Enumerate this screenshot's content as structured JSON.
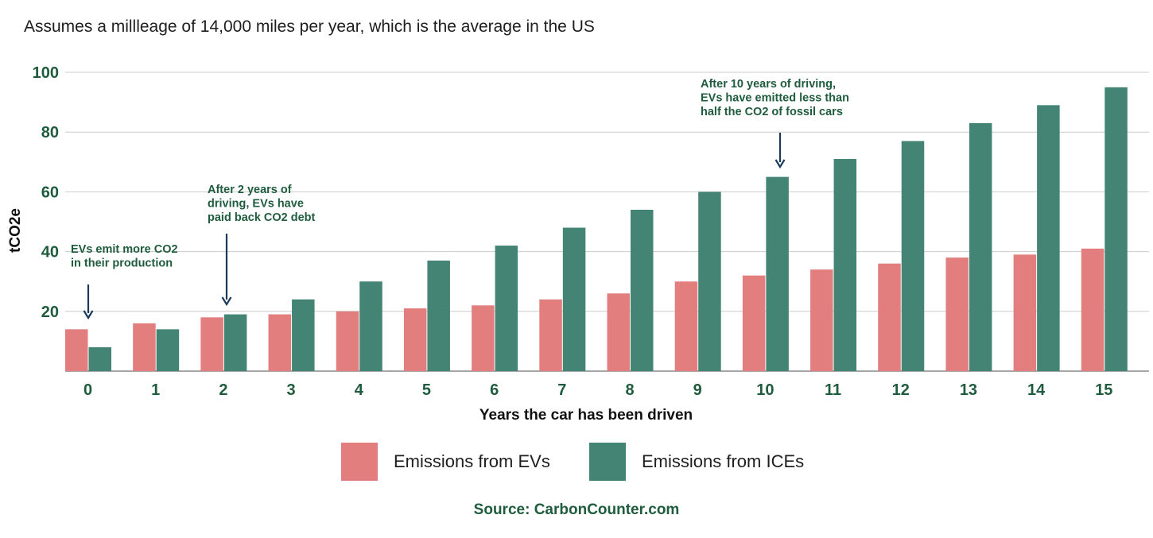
{
  "subtitle": "Assumes a millleage of 14,000 miles per year, which is the average in the US",
  "chart_data": {
    "type": "bar",
    "categories": [
      "0",
      "1",
      "2",
      "3",
      "4",
      "5",
      "6",
      "7",
      "8",
      "9",
      "10",
      "11",
      "12",
      "13",
      "14",
      "15"
    ],
    "series": [
      {
        "name": "Emissions from EVs",
        "color": "#e27e7e",
        "values": [
          14,
          16,
          18,
          19,
          20,
          21,
          22,
          24,
          26,
          30,
          32,
          34,
          36,
          38,
          39,
          41
        ]
      },
      {
        "name": "Emissions from ICEs",
        "color": "#438474",
        "values": [
          8,
          14,
          19,
          24,
          30,
          37,
          42,
          48,
          54,
          60,
          65,
          71,
          77,
          83,
          89,
          95
        ]
      }
    ],
    "title": "",
    "xlabel": "Years the car has been driven",
    "ylabel": "tCO2e",
    "ylim": [
      0,
      100
    ],
    "yticks": [
      20,
      40,
      60,
      80,
      100
    ],
    "grid": true,
    "legend_position": "bottom",
    "annotations": [
      {
        "category": "0",
        "lines": [
          "EVs emit more CO2",
          "in their production"
        ]
      },
      {
        "category": "2",
        "lines": [
          "After 2 years of",
          "driving, EVs have",
          "paid back CO2 debt"
        ]
      },
      {
        "category": "10",
        "lines": [
          "After 10 years of driving,",
          "EVs have emitted less than",
          "half the CO2 of fossil cars"
        ]
      }
    ],
    "text_color": "#1f5c3d",
    "arrow_color": "#1a3a5c"
  },
  "source": "Source: CarbonCounter.com"
}
